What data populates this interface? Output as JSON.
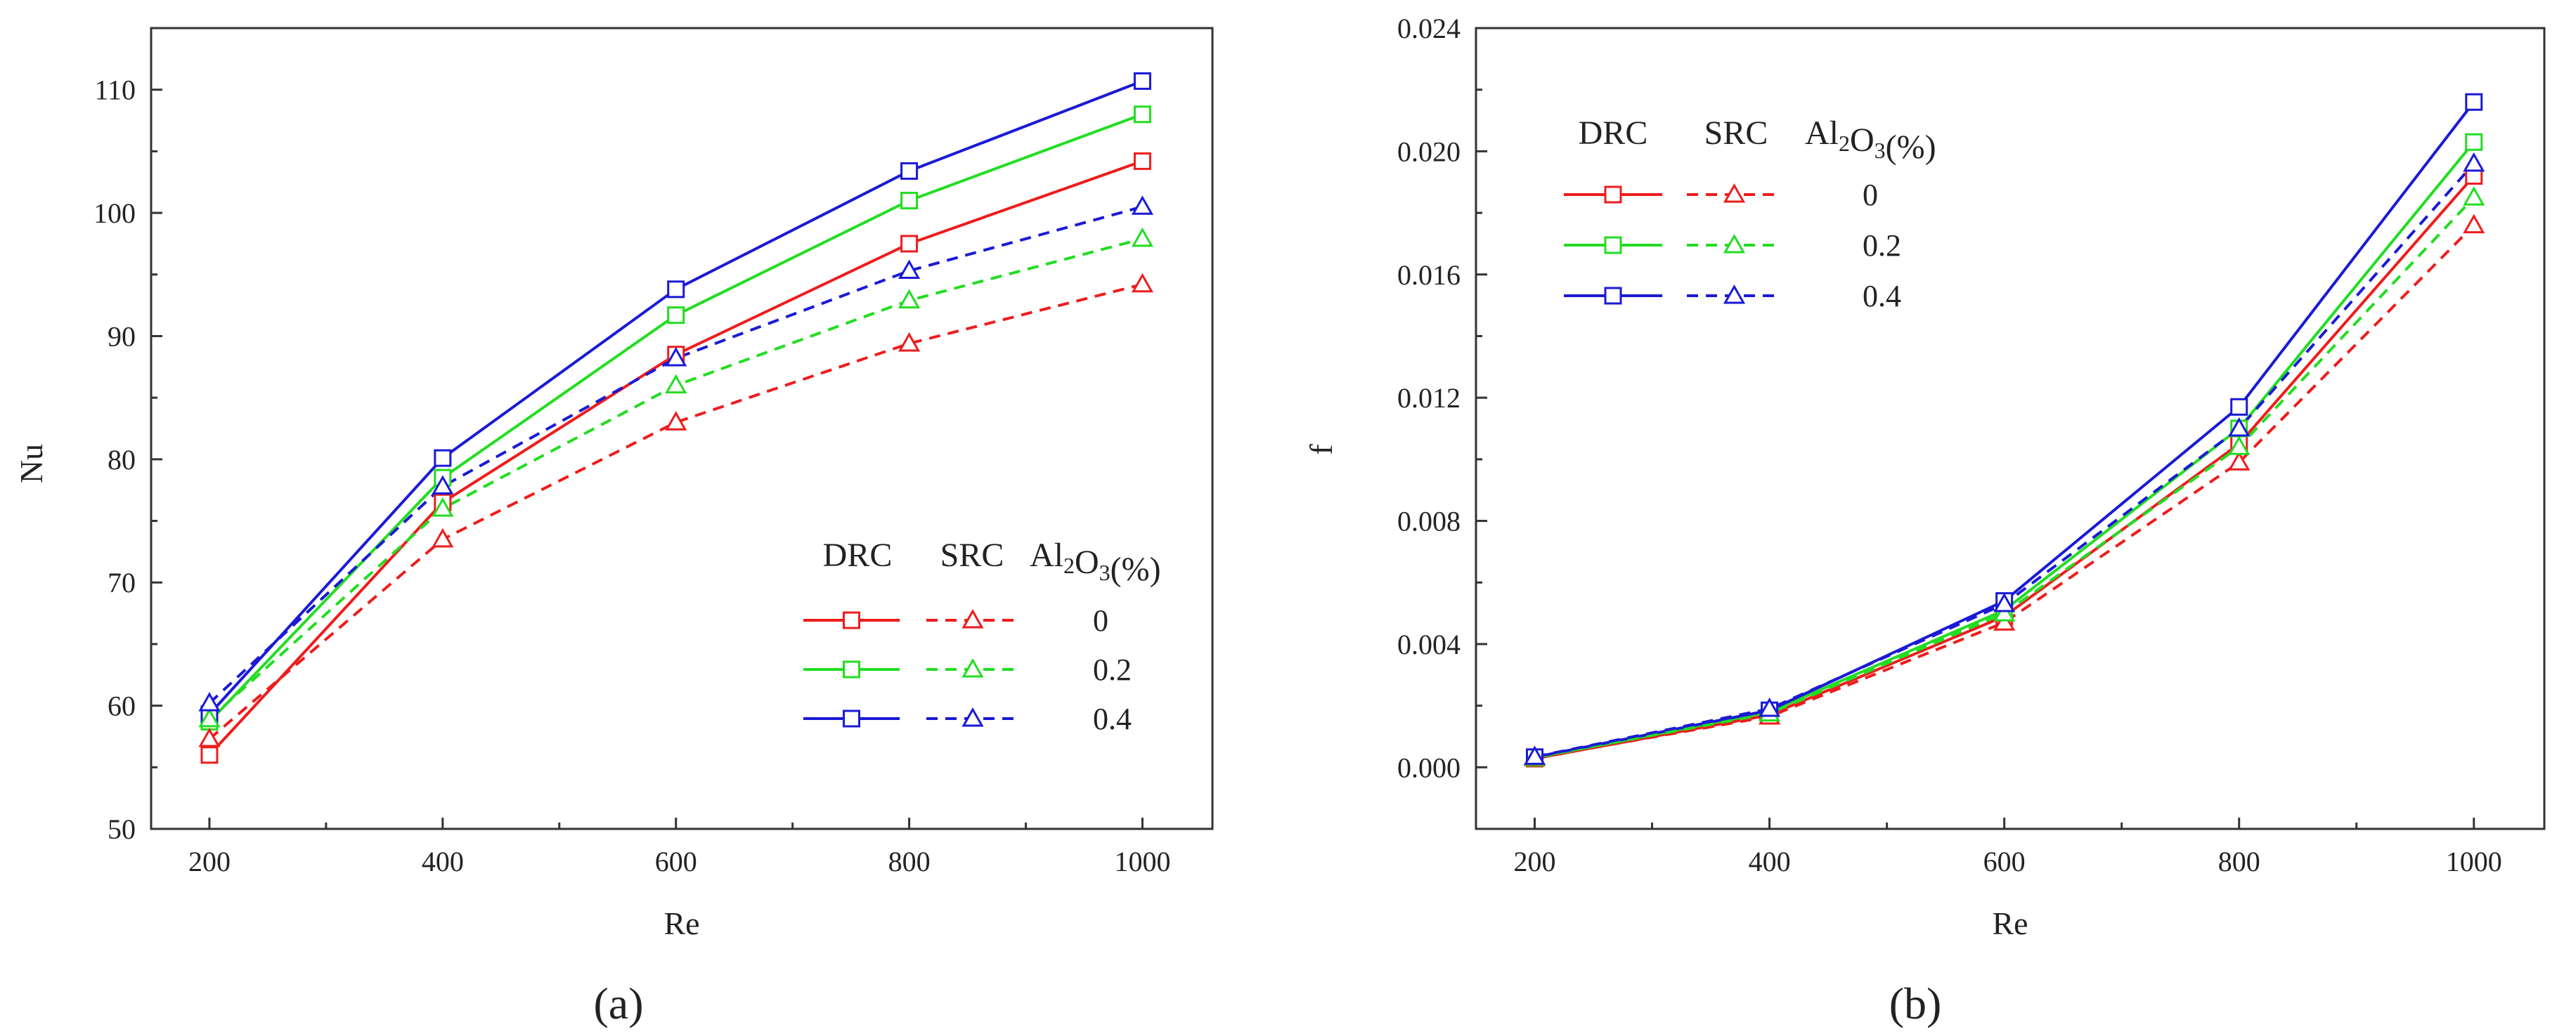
{
  "chart_data": [
    {
      "type": "line",
      "panel_label": "(a)",
      "xlabel": "Re",
      "ylabel": "Nu",
      "xlim": [
        150,
        1060
      ],
      "ylim": [
        50,
        115
      ],
      "x_major_ticks": [
        200,
        400,
        600,
        800,
        1000
      ],
      "x_minor_ticks": [
        300,
        500,
        700,
        900
      ],
      "y_major_ticks": [
        50,
        60,
        70,
        80,
        90,
        100,
        110
      ],
      "y_minor_ticks": [
        55,
        65,
        75,
        85,
        95,
        105
      ],
      "tick_labels_x": [
        "200",
        "400",
        "600",
        "800",
        "1000"
      ],
      "tick_labels_y": [
        "50",
        "60",
        "70",
        "80",
        "90",
        "100",
        "110"
      ],
      "x": [
        200,
        400,
        600,
        800,
        1000
      ],
      "grid": false,
      "legend_position": "bottom-right",
      "series": [
        {
          "name": "DRC 0",
          "method": "DRC",
          "concentration": "0",
          "color": "#ee1c1c",
          "dash": "solid",
          "marker": "square",
          "values": [
            56.0,
            76.5,
            88.5,
            97.5,
            104.2
          ]
        },
        {
          "name": "DRC 0.2",
          "method": "DRC",
          "concentration": "0.2",
          "color": "#22dd22",
          "dash": "solid",
          "marker": "square",
          "values": [
            58.7,
            78.5,
            91.7,
            101.0,
            108.0
          ]
        },
        {
          "name": "DRC 0.4",
          "method": "DRC",
          "concentration": "0.4",
          "color": "#1a1ad6",
          "dash": "solid",
          "marker": "square",
          "values": [
            59.3,
            80.1,
            93.8,
            103.4,
            110.7
          ]
        },
        {
          "name": "SRC 0",
          "method": "SRC",
          "concentration": "0",
          "color": "#ee1c1c",
          "dash": "dashed",
          "marker": "triangle",
          "values": [
            57.3,
            73.5,
            83.0,
            89.4,
            94.2
          ]
        },
        {
          "name": "SRC 0.2",
          "method": "SRC",
          "concentration": "0.2",
          "color": "#22dd22",
          "dash": "dashed",
          "marker": "triangle",
          "values": [
            58.9,
            76.0,
            86.0,
            92.9,
            97.9
          ]
        },
        {
          "name": "SRC 0.4",
          "method": "SRC",
          "concentration": "0.4",
          "color": "#1a1ad6",
          "dash": "dashed",
          "marker": "triangle",
          "values": [
            60.2,
            77.8,
            88.2,
            95.3,
            100.5
          ]
        }
      ],
      "legend": {
        "header_solid": "DRC",
        "header_dashed": "SRC",
        "header_param": "Al2O3(%)",
        "values": [
          "0",
          "0.2",
          "0.4"
        ]
      }
    },
    {
      "type": "line",
      "panel_label": "(b)",
      "xlabel": "Re",
      "ylabel": "f",
      "xlim": [
        150,
        1060
      ],
      "ylim": [
        -0.002,
        0.024
      ],
      "x_major_ticks": [
        200,
        400,
        600,
        800,
        1000
      ],
      "x_minor_ticks": [
        300,
        500,
        700,
        900
      ],
      "y_major_ticks": [
        0.0,
        0.004,
        0.008,
        0.012,
        0.016,
        0.02,
        0.024
      ],
      "y_minor_ticks": [
        -0.002,
        0.002,
        0.006,
        0.01,
        0.014,
        0.018,
        0.022
      ],
      "tick_labels_x": [
        "200",
        "400",
        "600",
        "800",
        "1000"
      ],
      "tick_labels_y": [
        "0.000",
        "0.004",
        "0.008",
        "0.012",
        "0.016",
        "0.020",
        "0.024"
      ],
      "x": [
        200,
        400,
        600,
        800,
        1000
      ],
      "grid": false,
      "legend_position": "top-left",
      "series": [
        {
          "name": "DRC 0",
          "method": "DRC",
          "concentration": "0",
          "color": "#ee1c1c",
          "dash": "solid",
          "marker": "square",
          "values": [
            0.00028,
            0.0017,
            0.0049,
            0.0105,
            0.0192
          ]
        },
        {
          "name": "DRC 0.2",
          "method": "DRC",
          "concentration": "0.2",
          "color": "#22dd22",
          "dash": "solid",
          "marker": "square",
          "values": [
            0.0003,
            0.0018,
            0.0051,
            0.011,
            0.0203
          ]
        },
        {
          "name": "DRC 0.4",
          "method": "DRC",
          "concentration": "0.4",
          "color": "#1a1ad6",
          "dash": "solid",
          "marker": "square",
          "values": [
            0.00033,
            0.00185,
            0.0054,
            0.0117,
            0.0216
          ]
        },
        {
          "name": "SRC 0",
          "method": "SRC",
          "concentration": "0",
          "color": "#ee1c1c",
          "dash": "dashed",
          "marker": "triangle",
          "values": [
            0.0003,
            0.00165,
            0.0047,
            0.0099,
            0.0176
          ]
        },
        {
          "name": "SRC 0.2",
          "method": "SRC",
          "concentration": "0.2",
          "color": "#22dd22",
          "dash": "dashed",
          "marker": "triangle",
          "values": [
            0.00032,
            0.00175,
            0.005,
            0.0104,
            0.0185
          ]
        },
        {
          "name": "SRC 0.4",
          "method": "SRC",
          "concentration": "0.4",
          "color": "#1a1ad6",
          "dash": "dashed",
          "marker": "triangle",
          "values": [
            0.00034,
            0.0019,
            0.0053,
            0.011,
            0.0196
          ]
        }
      ],
      "legend": {
        "header_solid": "DRC",
        "header_dashed": "SRC",
        "header_param": "Al2O3(%)",
        "values": [
          "0",
          "0.2",
          "0.4"
        ]
      }
    }
  ]
}
